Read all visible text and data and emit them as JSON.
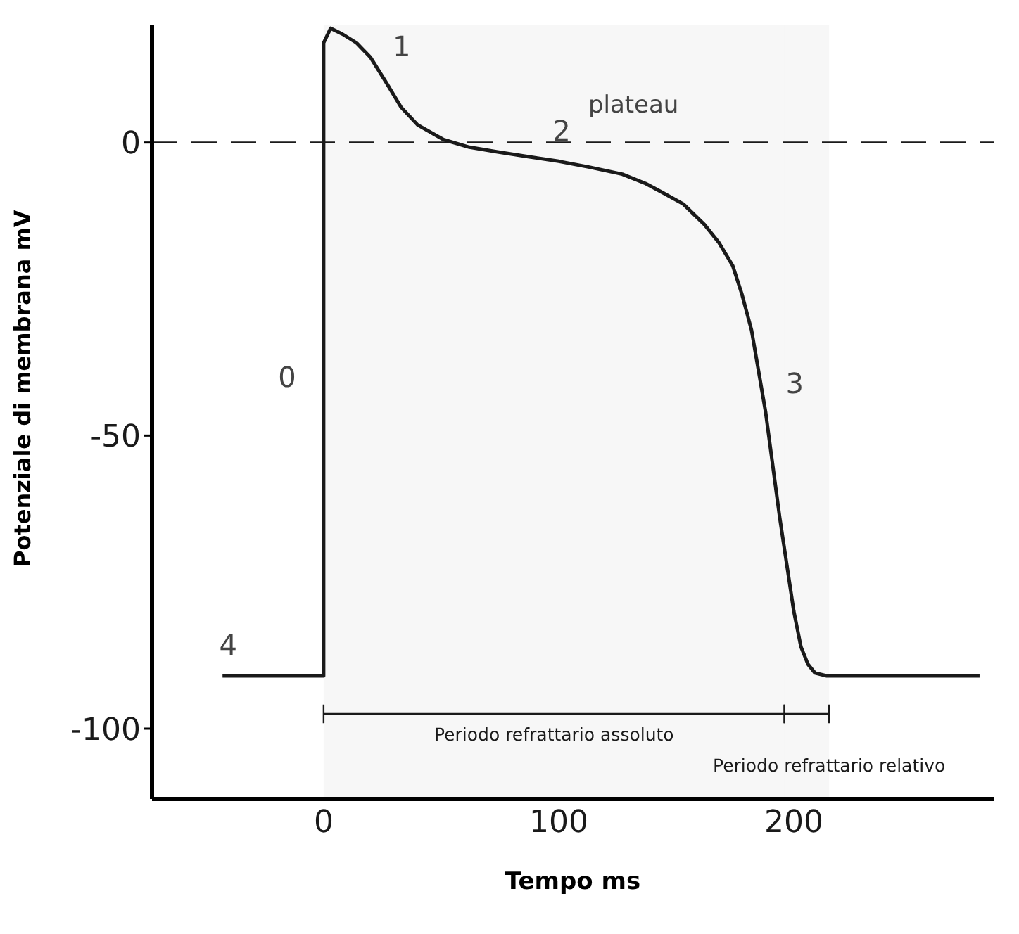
{
  "chart_data": {
    "type": "line",
    "xlabel": "Tempo ms",
    "ylabel": "Potenziale di membrana mV",
    "x": [
      -43,
      0,
      0,
      3,
      8,
      14,
      20,
      27,
      33,
      40,
      51,
      62,
      74,
      87,
      100,
      113,
      127,
      137,
      144,
      153,
      162,
      168,
      174,
      178,
      182,
      185,
      188,
      191,
      194,
      197,
      200,
      203,
      206,
      209,
      214,
      279
    ],
    "series": [
      {
        "color": "#1a1a1a",
        "values": [
          -91,
          -91,
          17,
          19.5,
          18.5,
          17,
          14.5,
          10,
          6,
          3,
          0.5,
          -0.8,
          -1.6,
          -2.4,
          -3.2,
          -4.2,
          -5.4,
          -7,
          -8.5,
          -10.5,
          -14,
          -17,
          -21,
          -26,
          -32,
          -39,
          -46,
          -55,
          -64,
          -72,
          -80,
          -86,
          -89,
          -90.5,
          -91,
          -91
        ]
      }
    ],
    "xlim": [
      -73,
      285
    ],
    "ylim": [
      -112,
      20
    ],
    "xticks": [
      0,
      100,
      200
    ],
    "yticks": [
      0,
      -50,
      -100
    ],
    "grid": false,
    "marker": "none",
    "line_style": "solid",
    "ref_lines": [
      {
        "axis": "y",
        "value": 0,
        "line_style": "dashed",
        "color": "#1a1a1a"
      }
    ],
    "bands": [
      {
        "axis": "x",
        "from": 0,
        "to": 196,
        "label": "Periodo refrattario assoluto"
      },
      {
        "axis": "x",
        "from": 196,
        "to": 215,
        "label": "Periodo refrattario relativo"
      }
    ],
    "annotations": [
      {
        "text": "1",
        "x": 20,
        "y": 14.5
      },
      {
        "text": "plateau",
        "x": 127,
        "y": -5.4
      },
      {
        "text": "2",
        "x": 100,
        "y": -3.2
      },
      {
        "text": "0",
        "x": 0,
        "y": -40
      },
      {
        "text": "3",
        "x": 186,
        "y": -41
      },
      {
        "text": "4",
        "x": -43,
        "y": -91
      }
    ]
  }
}
